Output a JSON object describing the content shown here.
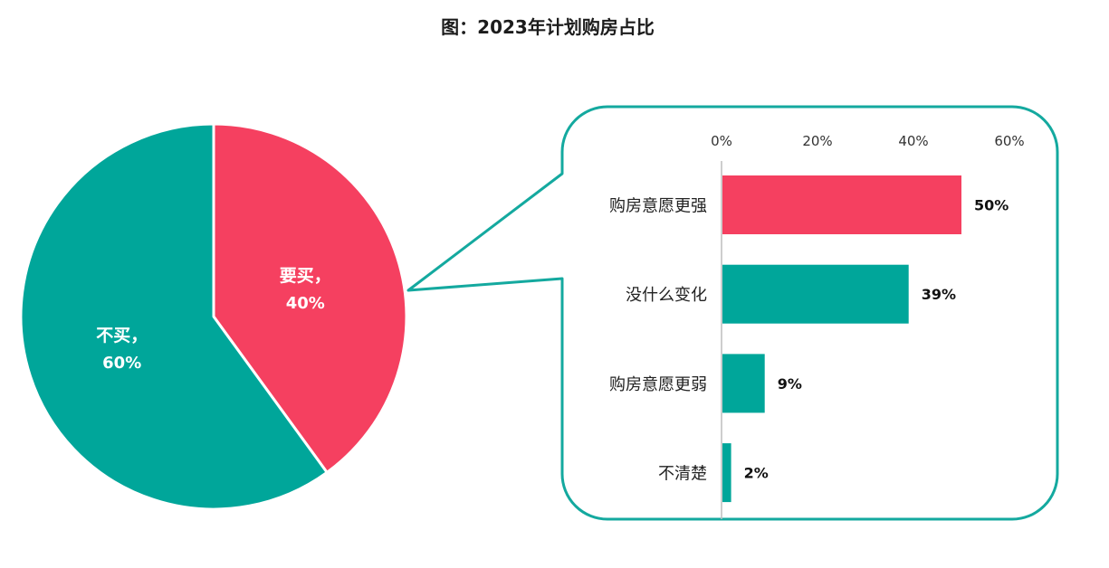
{
  "title": "图：2023年计划购房占比",
  "colors": {
    "callout_border": "#14A99F"
  },
  "chart_data": [
    {
      "type": "pie",
      "categories": [
        "要买，",
        "不买，"
      ],
      "values": [
        40,
        60
      ],
      "value_labels": [
        "40%",
        "60%"
      ],
      "colors": [
        "#F54060",
        "#00A69A"
      ]
    },
    {
      "type": "bar",
      "orientation": "horizontal",
      "categories": [
        "购房意愿更强",
        "没什么变化",
        "购房意愿更弱",
        "不清楚"
      ],
      "values": [
        50,
        39,
        9,
        2
      ],
      "value_labels": [
        "50%",
        "39%",
        "9%",
        "2%"
      ],
      "bar_colors": [
        "#F54060",
        "#00A69A",
        "#00A69A",
        "#00A69A"
      ],
      "xlim": [
        0,
        60
      ],
      "xticks": [
        0,
        20,
        40,
        60
      ],
      "xtick_labels": [
        "0%",
        "20%",
        "40%",
        "60%"
      ],
      "grid": false
    }
  ]
}
